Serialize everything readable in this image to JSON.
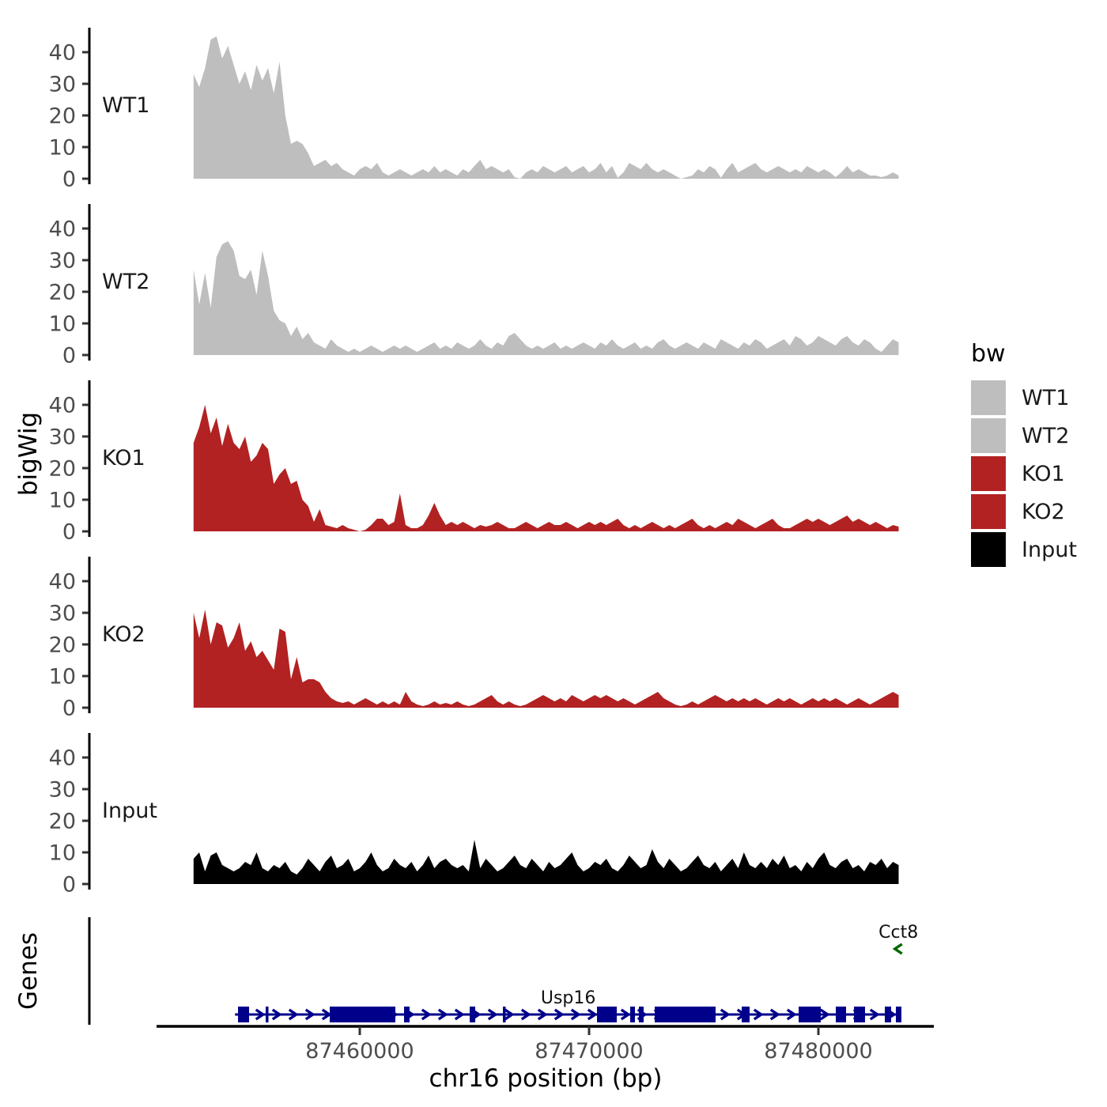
{
  "chart_data": {
    "type": "area",
    "title": "",
    "xlabel": "chr16 position (bp)",
    "ylabel": "bigWig",
    "genes_label": "Genes",
    "x_start_bp": 87452750,
    "x_step_bp": 250,
    "x_axis": {
      "range_bp": [
        87451100,
        87485100
      ],
      "ticks": [
        87460000,
        87470000,
        87480000
      ],
      "labels": [
        "87460000",
        "87470000",
        "87480000"
      ]
    },
    "y_axis": {
      "ticks": [
        0,
        10,
        20,
        30,
        40
      ],
      "max": 47,
      "grid": false
    },
    "legend": {
      "title": "bw",
      "position": "right",
      "items": [
        {
          "label": "WT1",
          "color": "#BEBEBE"
        },
        {
          "label": "WT2",
          "color": "#BEBEBE"
        },
        {
          "label": "KO1",
          "color": "#B22222"
        },
        {
          "label": "KO2",
          "color": "#B22222"
        },
        {
          "label": "Input",
          "color": "#000000"
        }
      ]
    },
    "series": [
      {
        "name": "WT1",
        "color": "#BEBEBE",
        "values": [
          33,
          29,
          35,
          44,
          45,
          38,
          42,
          36,
          30,
          34,
          28,
          36,
          31,
          35,
          27,
          37,
          20,
          11,
          12,
          11,
          8,
          4,
          5,
          6,
          4,
          5,
          3,
          2,
          1,
          3,
          4,
          3,
          5,
          2,
          1,
          2,
          3,
          2,
          1,
          2,
          3,
          2,
          4,
          2,
          3,
          2,
          1,
          3,
          2,
          4,
          6,
          3,
          4,
          3,
          2,
          3,
          0.5,
          0,
          2,
          3,
          2,
          4,
          3,
          2,
          3,
          4,
          2,
          3,
          4,
          2,
          3,
          5,
          2,
          4,
          0.3,
          2,
          5,
          4,
          3,
          5,
          3,
          2,
          3,
          2,
          1,
          0,
          0.5,
          1,
          3,
          2,
          4,
          3,
          0.3,
          3,
          5,
          2,
          3,
          4,
          5,
          3,
          2,
          3,
          4,
          3,
          2,
          3,
          2,
          4,
          3,
          2,
          3,
          2,
          0.5,
          2,
          4,
          2,
          3,
          2,
          1,
          1,
          0.5,
          1,
          2,
          1
        ]
      },
      {
        "name": "WT2",
        "color": "#BEBEBE",
        "values": [
          27,
          16,
          26,
          15,
          31,
          35,
          36,
          33,
          25,
          24,
          27,
          19,
          33,
          25,
          14,
          11,
          10,
          6,
          9,
          5,
          7,
          4,
          3,
          2,
          5,
          3,
          2,
          1,
          2,
          1,
          2,
          3,
          2,
          1,
          2,
          3,
          2,
          3,
          2,
          1,
          2,
          3,
          4,
          2,
          3,
          2,
          4,
          3,
          2,
          3,
          5,
          3,
          2,
          4,
          3,
          6,
          7,
          5,
          3,
          2,
          3,
          2,
          3,
          4,
          2,
          3,
          2,
          3,
          4,
          3,
          2,
          4,
          3,
          5,
          3,
          2,
          3,
          4,
          2,
          3,
          2,
          4,
          5,
          3,
          2,
          3,
          4,
          3,
          2,
          4,
          3,
          2,
          5,
          4,
          3,
          2,
          4,
          3,
          5,
          4,
          2,
          3,
          4,
          5,
          3,
          6,
          5,
          3,
          4,
          6,
          5,
          4,
          3,
          5,
          6,
          4,
          3,
          5,
          4,
          2,
          1,
          3,
          5,
          4
        ]
      },
      {
        "name": "KO1",
        "color": "#B22222",
        "values": [
          28,
          33,
          40,
          31,
          36,
          27,
          34,
          28,
          26,
          30,
          22,
          24,
          28,
          26,
          15,
          18,
          20,
          15,
          16,
          10,
          8,
          3,
          7,
          2,
          1.5,
          1,
          2,
          1,
          0.5,
          0,
          0.5,
          2,
          4,
          4,
          2,
          3,
          12,
          2,
          1,
          1,
          2,
          5,
          9,
          5,
          2,
          3,
          2,
          3,
          2,
          1,
          2,
          1.5,
          2,
          3,
          2,
          1,
          1,
          2,
          3,
          2,
          1,
          2,
          3,
          2,
          2,
          3,
          2,
          1,
          2,
          3,
          2,
          3,
          2,
          3,
          4,
          2,
          1,
          2,
          1,
          2,
          3,
          2,
          1,
          2,
          1,
          2,
          3,
          4,
          2,
          1,
          2,
          1,
          2,
          3,
          2,
          4,
          3,
          2,
          1,
          2,
          3,
          4,
          2,
          1,
          1,
          2,
          3,
          4,
          3,
          4,
          3,
          2,
          3,
          4,
          5,
          3,
          4,
          3,
          2,
          3,
          2,
          1,
          2,
          1.5
        ]
      },
      {
        "name": "KO2",
        "color": "#B22222",
        "values": [
          30,
          22,
          31,
          20,
          27,
          26,
          19,
          22,
          27,
          18,
          21,
          16,
          18,
          15,
          12,
          25,
          24,
          9,
          16,
          8,
          9,
          9,
          8,
          5,
          3,
          2,
          1.5,
          2,
          1,
          2,
          3,
          2,
          1,
          2,
          1,
          2,
          1,
          5,
          2,
          1,
          0.5,
          1,
          2,
          1,
          1.5,
          1,
          2,
          1,
          0.5,
          1,
          2,
          3,
          4,
          2,
          1,
          2,
          1,
          0.5,
          1,
          2,
          3,
          4,
          3,
          2,
          3,
          2,
          4,
          3,
          2,
          3,
          4,
          3,
          4,
          3,
          2,
          3,
          2,
          1,
          2,
          3,
          4,
          5,
          3,
          2,
          1,
          0.5,
          1,
          2,
          1,
          2,
          3,
          4,
          3,
          2,
          3,
          2,
          3,
          2,
          3,
          2,
          1,
          2,
          3,
          2,
          3,
          2,
          1,
          2,
          3,
          2,
          3,
          2,
          3,
          2,
          1,
          2,
          3,
          2,
          1,
          2,
          3,
          4,
          5,
          4
        ]
      },
      {
        "name": "Input",
        "color": "#000000",
        "values": [
          8,
          10,
          4,
          9,
          10,
          6,
          5,
          4,
          5,
          7,
          6,
          10,
          5,
          4,
          6,
          5,
          7,
          4,
          3,
          5,
          8,
          6,
          4,
          7,
          9,
          5,
          6,
          8,
          4,
          5,
          7,
          10,
          6,
          4,
          5,
          8,
          6,
          5,
          7,
          4,
          6,
          9,
          5,
          7,
          8,
          6,
          5,
          6,
          4,
          14,
          5,
          8,
          6,
          4,
          5,
          7,
          9,
          6,
          5,
          8,
          6,
          4,
          7,
          5,
          6,
          8,
          10,
          6,
          4,
          5,
          7,
          6,
          8,
          5,
          4,
          6,
          9,
          7,
          5,
          6,
          11,
          7,
          5,
          8,
          6,
          4,
          5,
          7,
          9,
          6,
          5,
          7,
          4,
          6,
          8,
          5,
          10,
          6,
          5,
          7,
          5,
          8,
          6,
          9,
          5,
          6,
          4,
          7,
          5,
          8,
          10,
          6,
          5,
          7,
          8,
          5,
          6,
          4,
          7,
          6,
          8,
          5,
          7,
          6
        ]
      }
    ],
    "genes": [
      {
        "name": "Usp16",
        "strand": "+",
        "color": "#00008B",
        "start_bp": 87454560,
        "end_bp": 87483620,
        "exons_bp": [
          [
            87454690,
            87455172
          ],
          [
            87455897,
            87455980
          ],
          [
            87458690,
            87461552
          ],
          [
            87461931,
            87462172
          ],
          [
            87464793,
            87465034
          ],
          [
            87466241,
            87466345
          ],
          [
            87470345,
            87471207
          ],
          [
            87471793,
            87472000
          ],
          [
            87472172,
            87472379
          ],
          [
            87472862,
            87475517
          ],
          [
            87476655,
            87477000
          ],
          [
            87479138,
            87480103
          ],
          [
            87480759,
            87481207
          ],
          [
            87481552,
            87482034
          ],
          [
            87482897,
            87483172
          ],
          [
            87483379,
            87483620
          ]
        ]
      },
      {
        "name": "Cct8",
        "strand": "-",
        "color": "#006400",
        "start_bp": 87483380,
        "end_bp": 87483600,
        "exons_bp": []
      }
    ]
  }
}
